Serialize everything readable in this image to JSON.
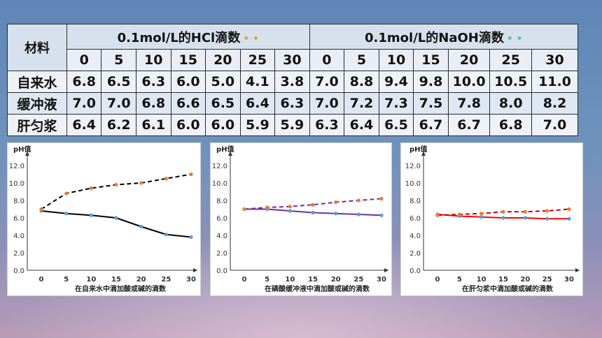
{
  "table": {
    "corner_label": "材料",
    "hcl_header": "0.1mol/L的HCl滴数",
    "naoh_header": "0.1mol/L的NaOH滴数",
    "drops": [
      "0",
      "5",
      "10",
      "15",
      "20",
      "25",
      "30"
    ],
    "rows": [
      {
        "name": "自来水",
        "hcl": [
          "6.8",
          "6.5",
          "6.3",
          "6.0",
          "5.0",
          "4.1",
          "3.8"
        ],
        "naoh": [
          "7.0",
          "8.8",
          "9.4",
          "9.8",
          "10.0",
          "10.5",
          "11.0"
        ]
      },
      {
        "name": "缓冲液",
        "hcl": [
          "7.0",
          "7.0",
          "6.8",
          "6.6",
          "6.5",
          "6.4",
          "6.3"
        ],
        "naoh": [
          "7.0",
          "7.2",
          "7.3",
          "7.5",
          "7.8",
          "8.0",
          "8.2"
        ]
      },
      {
        "name": "肝匀浆",
        "hcl": [
          "6.4",
          "6.2",
          "6.1",
          "6.0",
          "6.0",
          "5.9",
          "5.9"
        ],
        "naoh": [
          "6.3",
          "6.4",
          "6.5",
          "6.7",
          "6.7",
          "6.8",
          "7.0"
        ]
      }
    ]
  },
  "chart_data": [
    {
      "type": "line",
      "ylabel": "pH值",
      "xlabel": "在自来水中滴加酸或碱的滴数",
      "x": [
        0,
        5,
        10,
        15,
        20,
        25,
        30
      ],
      "ylim": [
        0,
        12
      ],
      "yticks": [
        "0.0",
        "2.0",
        "4.0",
        "6.0",
        "8.0",
        "10.0",
        "12.0"
      ],
      "series": [
        {
          "style": "solid",
          "color": "#000000",
          "point_color": "#5b9bd5",
          "values": [
            6.8,
            6.5,
            6.3,
            6.0,
            5.0,
            4.1,
            3.8
          ]
        },
        {
          "style": "dashed",
          "color": "#000000",
          "point_color": "#ed7d31",
          "values": [
            7.0,
            8.8,
            9.4,
            9.8,
            10.0,
            10.5,
            11.0
          ]
        }
      ]
    },
    {
      "type": "line",
      "ylabel": "pH值",
      "xlabel": "在磷酸缓冲液中滴加酸或碱的滴数",
      "x": [
        0,
        5,
        10,
        15,
        20,
        25,
        30
      ],
      "ylim": [
        0,
        12
      ],
      "yticks": [
        "0.0",
        "2.0",
        "4.0",
        "6.0",
        "8.0",
        "10.0",
        "12.0"
      ],
      "series": [
        {
          "style": "solid",
          "color": "#7030a0",
          "point_color": "#5b9bd5",
          "values": [
            7.0,
            7.0,
            6.8,
            6.6,
            6.5,
            6.4,
            6.3
          ]
        },
        {
          "style": "dashed",
          "color": "#7030a0",
          "point_color": "#ed7d31",
          "values": [
            7.0,
            7.2,
            7.3,
            7.5,
            7.8,
            8.0,
            8.2
          ]
        }
      ]
    },
    {
      "type": "line",
      "ylabel": "pH值",
      "xlabel": "在肝匀浆中滴加酸或碱的滴数",
      "x": [
        0,
        5,
        10,
        15,
        20,
        25,
        30
      ],
      "ylim": [
        0,
        12
      ],
      "yticks": [
        "0.0",
        "2.0",
        "4.0",
        "6.0",
        "8.0",
        "10.0",
        "12.0"
      ],
      "series": [
        {
          "style": "solid",
          "color": "#ff0000",
          "point_color": "#5b9bd5",
          "values": [
            6.4,
            6.2,
            6.1,
            6.0,
            6.0,
            5.9,
            5.9
          ]
        },
        {
          "style": "dashed",
          "color": "#c00000",
          "point_color": "#ed7d31",
          "values": [
            6.3,
            6.4,
            6.5,
            6.7,
            6.7,
            6.8,
            7.0
          ]
        }
      ]
    }
  ]
}
